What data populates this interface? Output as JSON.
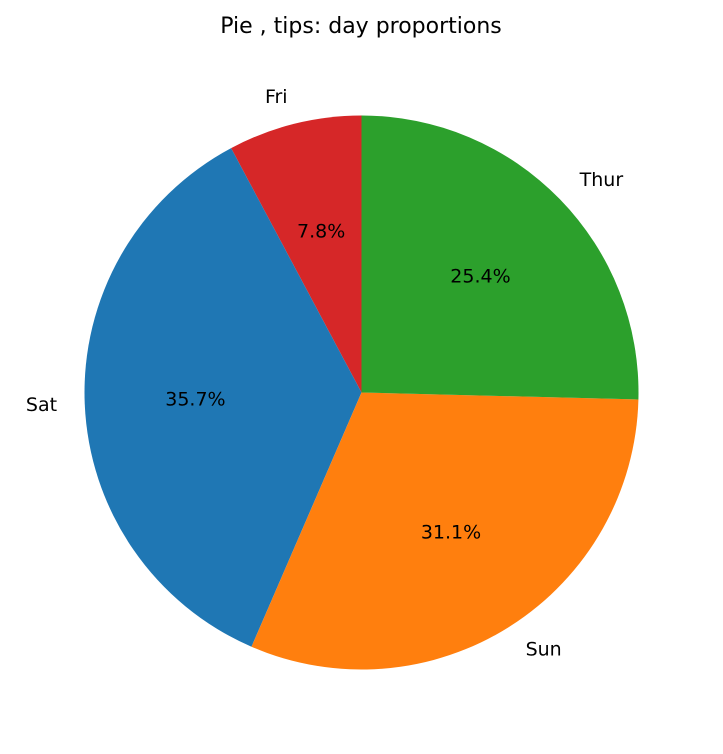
{
  "chart_data": {
    "type": "pie",
    "title": "Pie , tips: day proportions",
    "start_angle_deg": 90,
    "direction": "counterclockwise",
    "slices": [
      {
        "label": "Fri",
        "value": 7.8,
        "pct_label": "7.8%",
        "color": "#d62728"
      },
      {
        "label": "Sat",
        "value": 35.7,
        "pct_label": "35.7%",
        "color": "#1f77b4"
      },
      {
        "label": "Sun",
        "value": 31.1,
        "pct_label": "31.1%",
        "color": "#ff7f0e"
      },
      {
        "label": "Thur",
        "value": 25.4,
        "pct_label": "25.4%",
        "color": "#2ca02c"
      }
    ]
  }
}
